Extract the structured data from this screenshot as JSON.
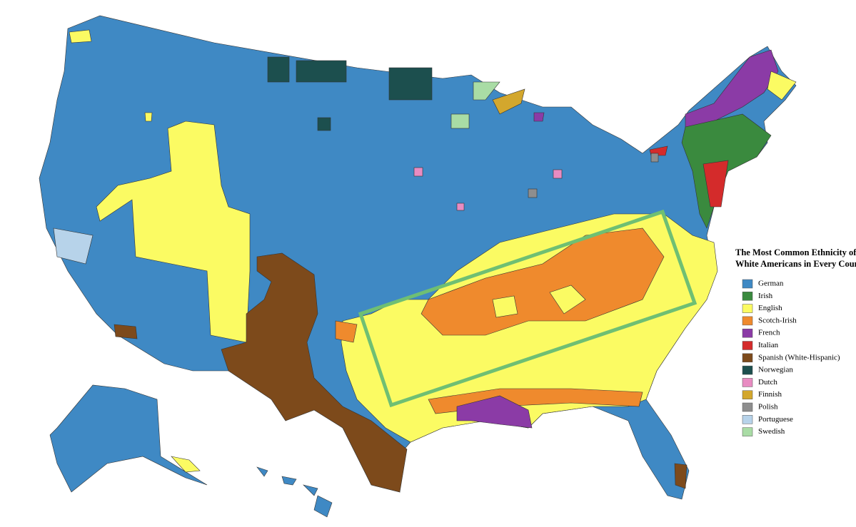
{
  "legend": {
    "title": [
      "The Most Common Ethnicity of",
      "White Americans in Every County"
    ],
    "items": [
      {
        "label": "German",
        "color": "#3f89c4"
      },
      {
        "label": "Irish",
        "color": "#3a8a3e"
      },
      {
        "label": "English",
        "color": "#fbfb63"
      },
      {
        "label": "Scotch-Irish",
        "color": "#ef8a2d"
      },
      {
        "label": "French",
        "color": "#8b3ba6"
      },
      {
        "label": "Italian",
        "color": "#d42b2b"
      },
      {
        "label": "Spanish (White-Hispanic)",
        "color": "#7d4a1b"
      },
      {
        "label": "Norwegian",
        "color": "#1c4f4e"
      },
      {
        "label": "Dutch",
        "color": "#e88cc2"
      },
      {
        "label": "Finnish",
        "color": "#d3a72d"
      },
      {
        "label": "Polish",
        "color": "#8e8e8e"
      },
      {
        "label": "Portuguese",
        "color": "#b7d3ea"
      },
      {
        "label": "Swedish",
        "color": "#a9dca5"
      }
    ]
  }
}
